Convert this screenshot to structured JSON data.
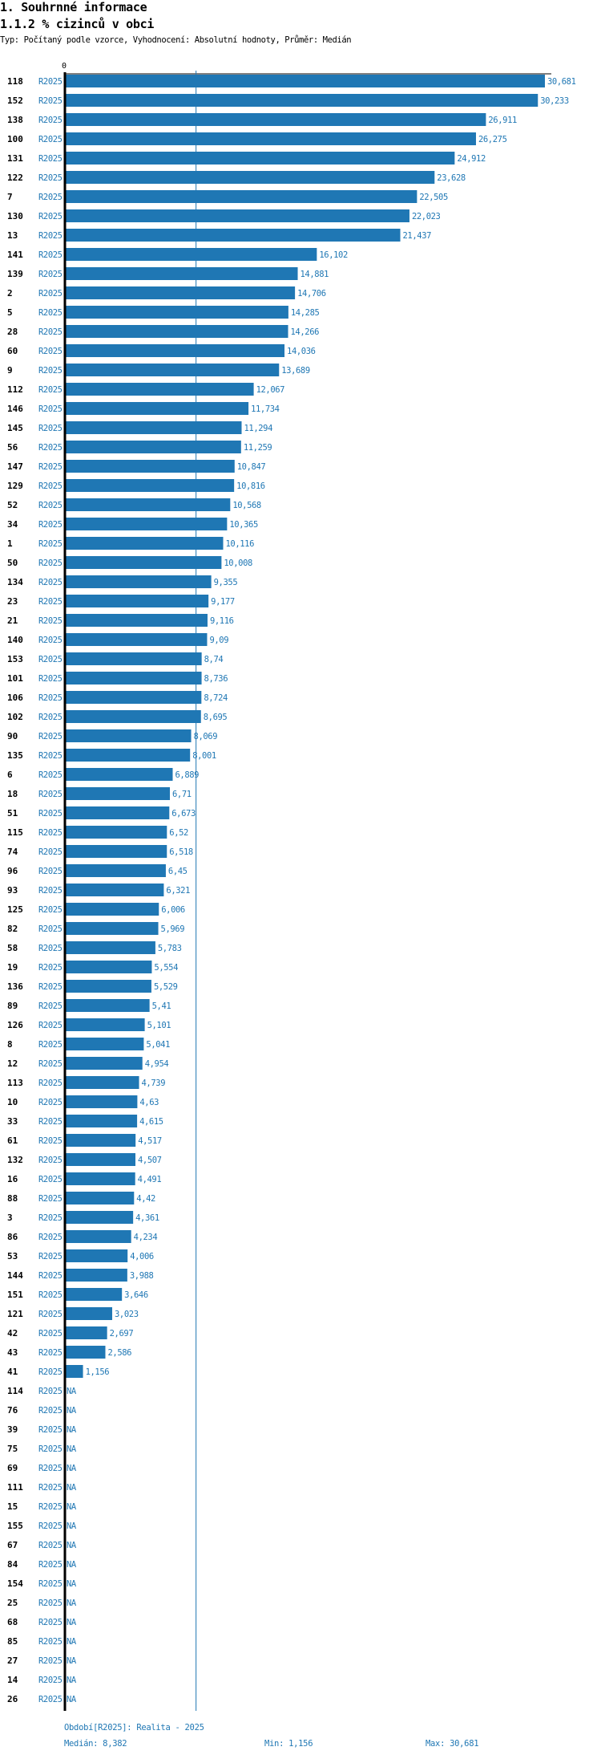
{
  "header": {
    "title": "1. Souhrnné informace",
    "subtitle": "1.1.2 % cizinců v obci",
    "meta": "Typ: Počítaný podle vzorce, Vyhodnocení: Absolutní hodnoty, Průměr: Medián"
  },
  "colors": {
    "bar": "#1f77b4",
    "axis": "#000000",
    "label": "#1f77b4"
  },
  "chart_data": {
    "type": "bar",
    "orientation": "horizontal",
    "title": "1.1.2 % cizinců v obci",
    "x_tick_labels": [
      "0"
    ],
    "xlim": [
      0,
      30681
    ],
    "median": 8382,
    "series_label": "R2025",
    "categories": [
      "118",
      "152",
      "138",
      "100",
      "131",
      "122",
      "7",
      "130",
      "13",
      "141",
      "139",
      "2",
      "5",
      "28",
      "60",
      "9",
      "112",
      "146",
      "145",
      "56",
      "147",
      "129",
      "52",
      "34",
      "1",
      "50",
      "134",
      "23",
      "21",
      "140",
      "153",
      "101",
      "106",
      "102",
      "90",
      "135",
      "6",
      "18",
      "51",
      "115",
      "74",
      "96",
      "93",
      "125",
      "82",
      "58",
      "19",
      "136",
      "89",
      "126",
      "8",
      "12",
      "113",
      "10",
      "33",
      "61",
      "132",
      "16",
      "88",
      "3",
      "86",
      "53",
      "144",
      "151",
      "121",
      "42",
      "43",
      "41",
      "114",
      "76",
      "39",
      "75",
      "69",
      "111",
      "15",
      "155",
      "67",
      "84",
      "154",
      "25",
      "68",
      "85",
      "27",
      "14",
      "26"
    ],
    "values": [
      30.681,
      30.233,
      26.911,
      26.275,
      24.912,
      23.628,
      22.505,
      22.023,
      21.437,
      16.102,
      14.881,
      14.706,
      14.285,
      14.266,
      14.036,
      13.689,
      12.067,
      11.734,
      11.294,
      11.259,
      10.847,
      10.816,
      10.568,
      10.365,
      10.116,
      10.008,
      9.355,
      9.177,
      9.116,
      9.09,
      8.74,
      8.736,
      8.724,
      8.695,
      8.069,
      8.001,
      6.889,
      6.71,
      6.673,
      6.52,
      6.518,
      6.45,
      6.321,
      6.006,
      5.969,
      5.783,
      5.554,
      5.529,
      5.41,
      5.101,
      5.041,
      4.954,
      4.739,
      4.63,
      4.615,
      4.517,
      4.507,
      4.491,
      4.42,
      4.361,
      4.234,
      4.006,
      3.988,
      3.646,
      3.023,
      2.697,
      2.586,
      1.156,
      null,
      null,
      null,
      null,
      null,
      null,
      null,
      null,
      null,
      null,
      null,
      null,
      null,
      null,
      null,
      null,
      null
    ],
    "value_labels": [
      "30,681",
      "30,233",
      "26,911",
      "26,275",
      "24,912",
      "23,628",
      "22,505",
      "22,023",
      "21,437",
      "16,102",
      "14,881",
      "14,706",
      "14,285",
      "14,266",
      "14,036",
      "13,689",
      "12,067",
      "11,734",
      "11,294",
      "11,259",
      "10,847",
      "10,816",
      "10,568",
      "10,365",
      "10,116",
      "10,008",
      "9,355",
      "9,177",
      "9,116",
      "9,09",
      "8,74",
      "8,736",
      "8,724",
      "8,695",
      "8,069",
      "8,001",
      "6,889",
      "6,71",
      "6,673",
      "6,52",
      "6,518",
      "6,45",
      "6,321",
      "6,006",
      "5,969",
      "5,783",
      "5,554",
      "5,529",
      "5,41",
      "5,101",
      "5,041",
      "4,954",
      "4,739",
      "4,63",
      "4,615",
      "4,517",
      "4,507",
      "4,491",
      "4,42",
      "4,361",
      "4,234",
      "4,006",
      "3,988",
      "3,646",
      "3,023",
      "2,697",
      "2,586",
      "1,156",
      "NA",
      "NA",
      "NA",
      "NA",
      "NA",
      "NA",
      "NA",
      "NA",
      "NA",
      "NA",
      "NA",
      "NA",
      "NA",
      "NA",
      "NA",
      "NA",
      "NA"
    ]
  },
  "footer": {
    "period": "Období[R2025]: Realita - 2025",
    "median": "Medián: 8,382",
    "min": "Min: 1,156",
    "max": "Max: 30,681"
  }
}
